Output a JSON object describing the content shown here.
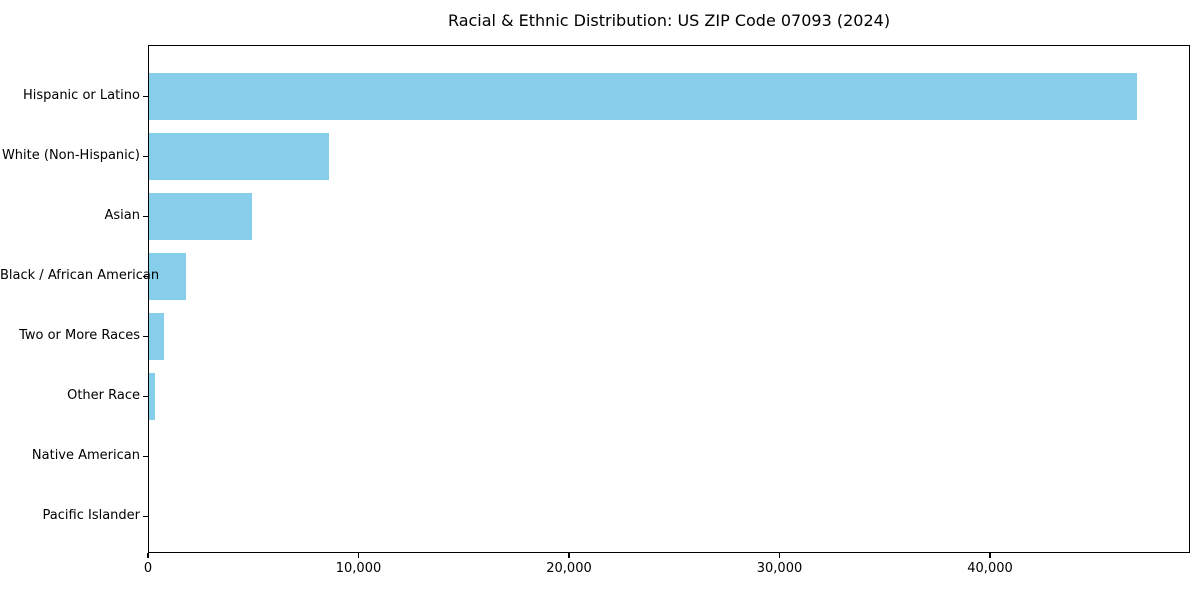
{
  "chart_data": {
    "type": "bar",
    "orientation": "horizontal",
    "title": "Racial & Ethnic Distribution: US ZIP Code 07093 (2024)",
    "categories": [
      "Hispanic or Latino",
      "White (Non-Hispanic)",
      "Asian",
      "Black / African American",
      "Two or More Races",
      "Other Race",
      "Native American",
      "Pacific Islander"
    ],
    "values": [
      47000,
      8600,
      4950,
      1820,
      760,
      350,
      30,
      10
    ],
    "xlabel": "",
    "ylabel": "",
    "xlim": [
      0,
      49500
    ],
    "xticks": [
      0,
      10000,
      20000,
      30000,
      40000
    ],
    "xtick_labels": [
      "0",
      "10,000",
      "20,000",
      "30,000",
      "40,000"
    ],
    "bar_color": "#87CEEB",
    "background_color": "#ffffff",
    "frame_color": "#000000",
    "grid": false,
    "legend": null
  }
}
